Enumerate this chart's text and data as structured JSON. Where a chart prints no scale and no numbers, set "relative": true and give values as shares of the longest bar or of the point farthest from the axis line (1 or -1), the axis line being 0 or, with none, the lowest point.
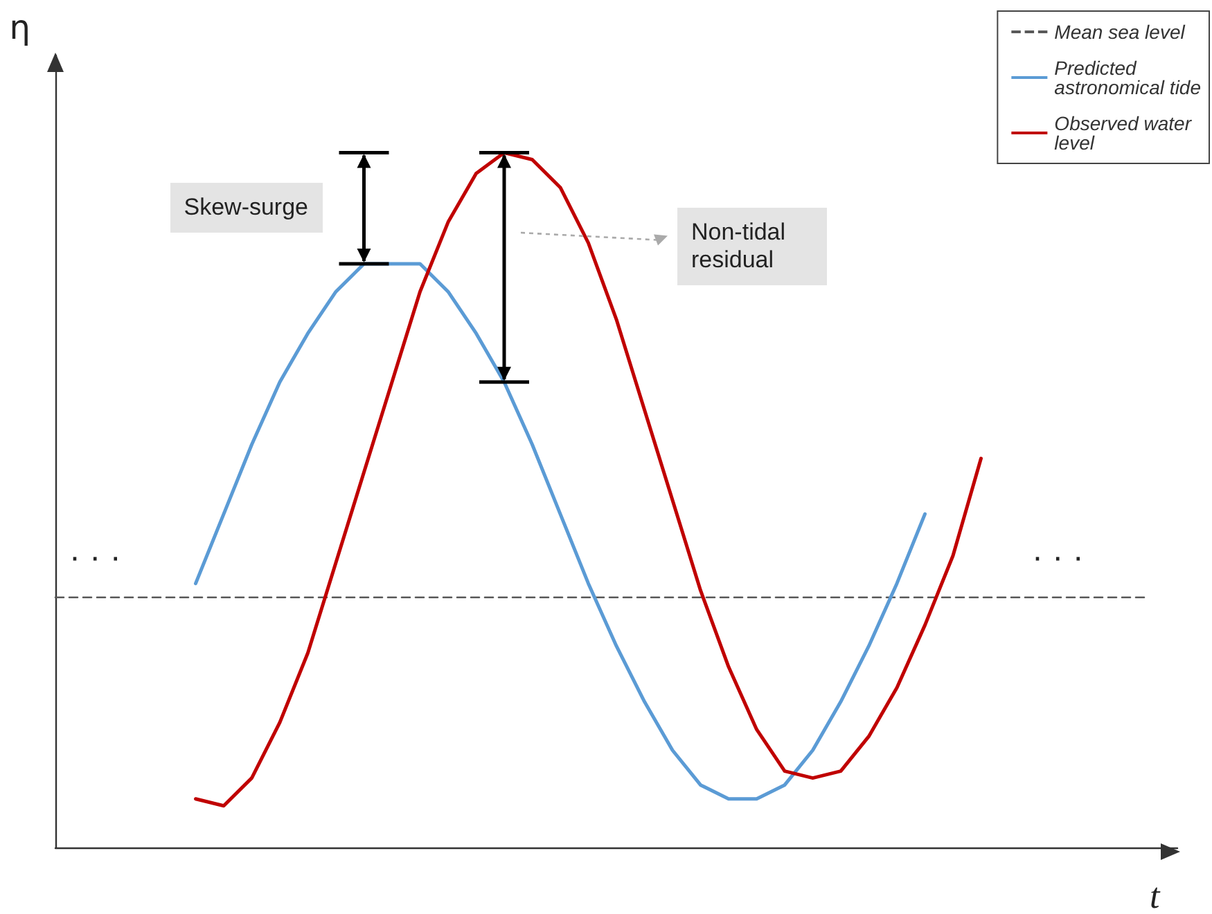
{
  "chart_data": {
    "type": "line",
    "relative": true,
    "xlabel": "t",
    "ylabel": "η",
    "legend": "top right",
    "marker": "none",
    "categories": [
      null,
      null,
      null,
      null,
      null,
      null,
      null,
      null,
      null,
      null,
      null,
      null,
      null,
      null,
      null,
      null,
      null,
      null,
      null,
      null,
      null,
      null,
      null,
      null,
      null,
      null,
      null,
      null,
      null,
      null,
      null,
      null,
      null,
      null,
      null,
      null,
      null,
      null,
      null,
      null,
      null
    ],
    "series": [
      {
        "name": "Mean sea level",
        "color": "#595959",
        "line_style": "dashed",
        "values": [
          0.36,
          0.36,
          0.36,
          0.36,
          0.36,
          0.36,
          0.36,
          0.36,
          0.36,
          0.36,
          0.36,
          0.36,
          0.36,
          0.36,
          0.36,
          0.36,
          0.36,
          0.36,
          0.36,
          0.36,
          0.36,
          0.36,
          0.36,
          0.36,
          0.36,
          0.36,
          0.36,
          0.36,
          0.36,
          0.36,
          0.36,
          0.36,
          0.36,
          0.36,
          0.36,
          0.36,
          0.36,
          0.36,
          0.36,
          0.36,
          null
        ]
      },
      {
        "name": "Predicted astronomical tide",
        "color": "#5b9bd5",
        "line_style": "solid",
        "values": [
          null,
          null,
          null,
          null,
          null,
          0.38,
          0.48,
          0.58,
          0.67,
          0.74,
          0.8,
          0.84,
          0.84,
          0.84,
          0.8,
          0.74,
          0.67,
          0.58,
          0.48,
          0.38,
          0.29,
          0.21,
          0.14,
          0.09,
          0.07,
          0.07,
          0.09,
          0.14,
          0.21,
          0.29,
          0.38,
          0.48,
          null,
          null,
          null,
          null,
          null,
          null,
          null,
          null,
          null
        ]
      },
      {
        "name": "Observed water level",
        "color": "#c00000",
        "line_style": "solid",
        "values": [
          null,
          null,
          null,
          null,
          null,
          0.07,
          0.06,
          0.1,
          0.18,
          0.28,
          0.41,
          0.54,
          0.67,
          0.8,
          0.9,
          0.97,
          1.0,
          0.99,
          0.95,
          0.87,
          0.76,
          0.63,
          0.5,
          0.37,
          0.26,
          0.17,
          0.11,
          0.1,
          0.11,
          0.16,
          0.23,
          0.32,
          0.42,
          0.56,
          null,
          null,
          null,
          null,
          null,
          null,
          null
        ]
      }
    ],
    "annotations": [
      "Skew-surge",
      "Non-tidal residual",
      "· · ·",
      "· · ·"
    ]
  }
}
